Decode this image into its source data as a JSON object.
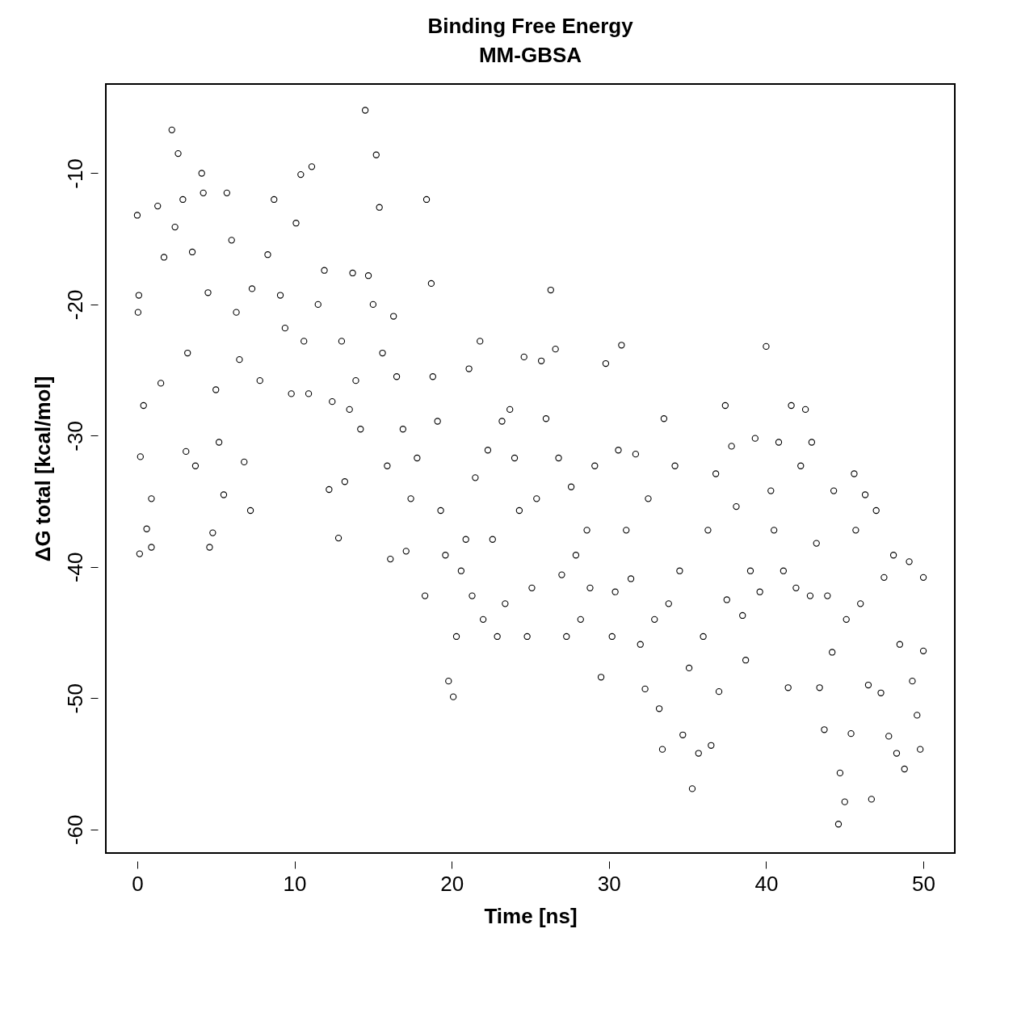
{
  "chart_data": {
    "type": "scatter",
    "title": "Binding Free Energy\nMM-GBSA",
    "xlabel": "Time [ns]",
    "ylabel": "ΔG total [kcal/mol]",
    "xlim": [
      -2,
      52
    ],
    "ylim": [
      -61.8,
      -3.2
    ],
    "xticks": [
      0,
      10,
      20,
      30,
      40,
      50
    ],
    "yticks": [
      -60,
      -50,
      -40,
      -30,
      -20,
      -10
    ],
    "grid": false,
    "marker": "circle",
    "series": [
      {
        "color": "#000000",
        "x": [
          0,
          0.05,
          0.1,
          0.15,
          0.2,
          0.4,
          0.6,
          0.9,
          1.3,
          0.9,
          1.5,
          1.7,
          2.2,
          2.4,
          2.6,
          2.9,
          3.1,
          3.2,
          3.5,
          3.7,
          4.1,
          4.2,
          4.5,
          4.6,
          4.8,
          5.0,
          5.2,
          5.5,
          5.7,
          6.0,
          6.3,
          6.5,
          6.8,
          7.2,
          7.3,
          7.8,
          8.3,
          8.7,
          9.1,
          9.4,
          9.8,
          10.1,
          10.4,
          10.6,
          10.9,
          11.1,
          11.5,
          11.9,
          12.2,
          12.4,
          12.8,
          13,
          13.2,
          13.5,
          13.7,
          13.9,
          14.2,
          14.5,
          14.7,
          15,
          15.2,
          15.4,
          15.6,
          15.9,
          16.3,
          16.1,
          16.5,
          16.9,
          17.1,
          17.4,
          17.8,
          18.3,
          18.4,
          18.7,
          18.8,
          19.1,
          19.3,
          19.6,
          19.8,
          20.1,
          20.3,
          20.6,
          20.9,
          21.1,
          21.3,
          21.5,
          21.8,
          22,
          22.3,
          22.6,
          22.9,
          23.2,
          23.4,
          23.7,
          24,
          24.3,
          24.6,
          24.8,
          25.1,
          25.4,
          25.7,
          26,
          26.3,
          26.6,
          26.8,
          27,
          27.3,
          27.6,
          27.9,
          28.2,
          28.6,
          28.8,
          29.1,
          29.5,
          29.8,
          30.2,
          30.4,
          30.6,
          30.8,
          31.1,
          31.4,
          31.7,
          32,
          32.3,
          32.5,
          32.9,
          33.2,
          33.4,
          33.5,
          33.8,
          34.2,
          34.5,
          34.7,
          35.1,
          35.3,
          35.7,
          36,
          36.3,
          36.5,
          36.8,
          37,
          37.4,
          37.5,
          37.8,
          38.1,
          38.5,
          38.7,
          39,
          39.3,
          39.6,
          40,
          40.3,
          40.5,
          40.8,
          41.1,
          41.4,
          41.6,
          41.9,
          42.2,
          42.5,
          42.8,
          42.9,
          43.2,
          43.4,
          43.7,
          43.9,
          44.2,
          44.3,
          44.6,
          44.7,
          45,
          45.1,
          45.4,
          45.6,
          45.7,
          46,
          46.3,
          46.5,
          46.7,
          47,
          47.3,
          47.5,
          47.8,
          48.1,
          48.3,
          48.5,
          48.8,
          49.1,
          49.3,
          49.6,
          49.8,
          50,
          50
        ],
        "values": [
          -13.2,
          -20.6,
          -19.3,
          -39,
          -31.6,
          -27.7,
          -37.1,
          -38.5,
          -12.5,
          -34.8,
          -26,
          -16.4,
          -6.7,
          -14.1,
          -8.5,
          -12,
          -31.2,
          -23.7,
          -16,
          -32.3,
          -10,
          -11.5,
          -19.1,
          -38.5,
          -37.4,
          -26.5,
          -30.5,
          -34.5,
          -11.5,
          -15.1,
          -20.6,
          -24.2,
          -32,
          -35.7,
          -18.8,
          -25.8,
          -16.2,
          -12,
          -19.3,
          -21.8,
          -26.8,
          -13.8,
          -10.1,
          -22.8,
          -26.8,
          -9.5,
          -20,
          -17.4,
          -34.1,
          -27.4,
          -37.8,
          -22.8,
          -33.5,
          -28,
          -17.6,
          -25.8,
          -29.5,
          -5.2,
          -17.8,
          -20,
          -8.6,
          -12.6,
          -23.7,
          -32.3,
          -20.9,
          -39.4,
          -25.5,
          -29.5,
          -38.8,
          -34.8,
          -31.7,
          -42.2,
          -12,
          -18.4,
          -25.5,
          -28.9,
          -35.7,
          -39.1,
          -48.7,
          -49.9,
          -45.3,
          -40.3,
          -37.9,
          -24.9,
          -42.2,
          -33.2,
          -22.8,
          -44,
          -31.1,
          -37.9,
          -45.3,
          -28.9,
          -42.8,
          -28,
          -31.7,
          -35.7,
          -24,
          -45.3,
          -41.6,
          -34.8,
          -24.3,
          -28.7,
          -18.9,
          -23.4,
          -31.7,
          -40.6,
          -45.3,
          -33.9,
          -39.1,
          -44,
          -37.2,
          -41.6,
          -32.3,
          -48.4,
          -24.5,
          -45.3,
          -41.9,
          -31.1,
          -23.1,
          -37.2,
          -40.9,
          -31.4,
          -45.9,
          -49.3,
          -34.8,
          -44,
          -50.8,
          -53.9,
          -28.7,
          -42.8,
          -32.3,
          -40.3,
          -52.8,
          -47.7,
          -56.9,
          -54.2,
          -45.3,
          -37.2,
          -53.6,
          -32.9,
          -49.5,
          -27.7,
          -42.5,
          -30.8,
          -35.4,
          -43.7,
          -47.1,
          -40.3,
          -30.2,
          -41.9,
          -23.2,
          -34.2,
          -37.2,
          -30.5,
          -40.3,
          -49.2,
          -27.7,
          -41.6,
          -32.3,
          -28,
          -42.2,
          -30.5,
          -38.2,
          -49.2,
          -52.4,
          -42.2,
          -46.5,
          -34.2,
          -59.6,
          -55.7,
          -57.9,
          -44,
          -52.7,
          -32.9,
          -37.2,
          -42.8,
          -34.5,
          -49,
          -57.7,
          -35.7,
          -49.6,
          -40.8,
          -52.9,
          -39.1,
          -54.2,
          -45.9,
          -55.4,
          -39.6,
          -48.7,
          -51.3,
          -53.9,
          -40.8,
          -46.4
        ]
      }
    ]
  }
}
